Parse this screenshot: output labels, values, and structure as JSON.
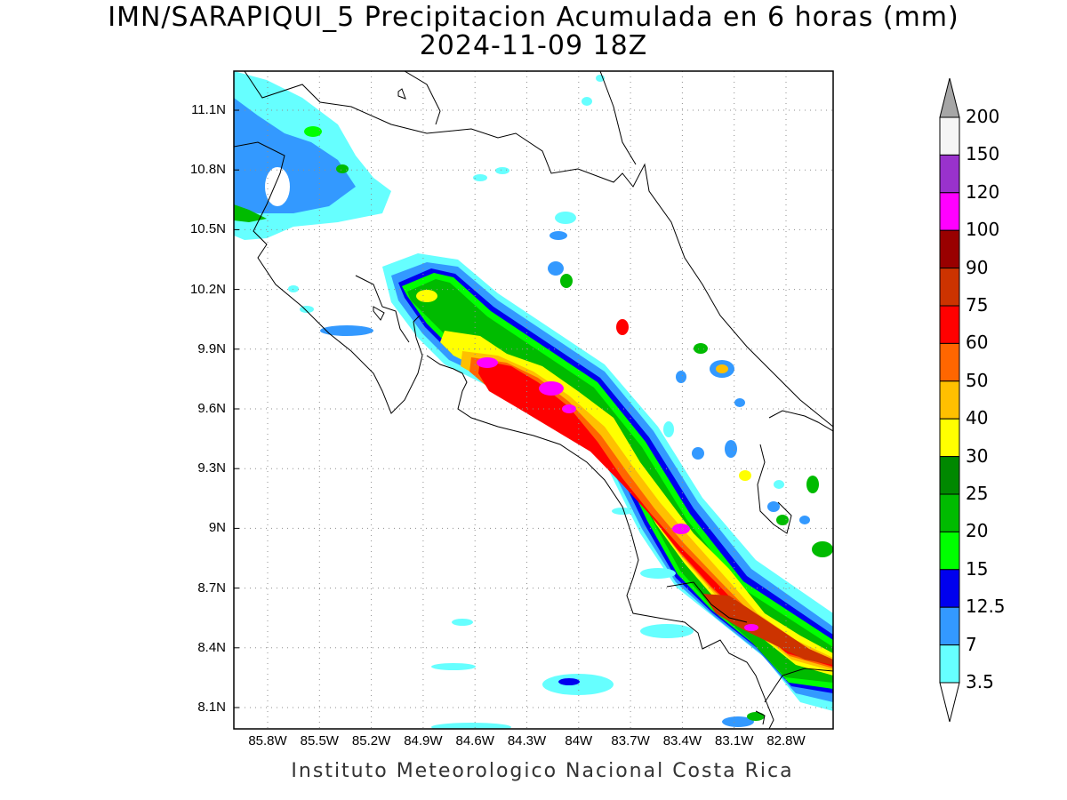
{
  "title_line1": "IMN/SARAPIQUI_5 Precipitacion Acumulada en 6 horas (mm)",
  "title_line2": "2024-11-09 18Z",
  "footer": "Instituto Meteorologico Nacional Costa Rica",
  "lat_ticks": [
    "11.1N",
    "10.8N",
    "10.5N",
    "10.2N",
    "9.9N",
    "9.6N",
    "9.3N",
    "9N",
    "8.7N",
    "8.4N",
    "8.1N"
  ],
  "lon_ticks": [
    "85.8W",
    "85.5W",
    "85.2W",
    "84.9W",
    "84.6W",
    "84.3W",
    "84W",
    "83.7W",
    "83.4W",
    "83.1W",
    "82.8W"
  ],
  "colorbar": {
    "labels": [
      "200",
      "150",
      "120",
      "100",
      "90",
      "75",
      "60",
      "50",
      "40",
      "30",
      "25",
      "20",
      "15",
      "12.5",
      "7",
      "3.5"
    ],
    "colors": [
      "#a6a6a6",
      "#f5f5f5",
      "#9932cc",
      "#ff00ff",
      "#990000",
      "#cc3300",
      "#ff0000",
      "#ff6600",
      "#ffc000",
      "#ffff00",
      "#008800",
      "#00bb00",
      "#00ff00",
      "#0000ee",
      "#3399ff",
      "#66ffff"
    ]
  }
}
